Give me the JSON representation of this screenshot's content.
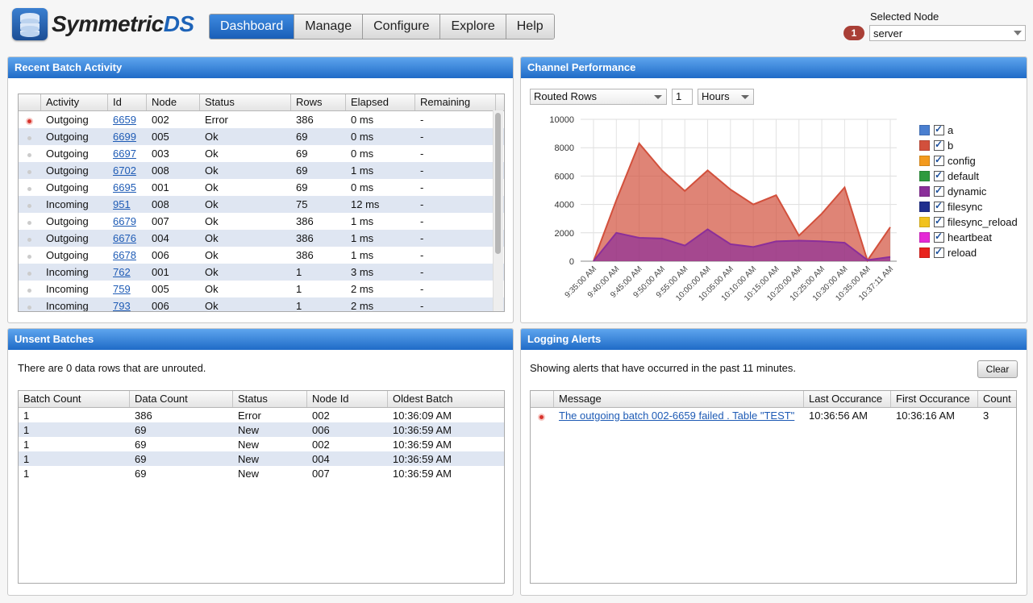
{
  "app": {
    "name_main": "Symmetric",
    "name_accent": "DS"
  },
  "nav": {
    "items": [
      "Dashboard",
      "Manage",
      "Configure",
      "Explore",
      "Help"
    ],
    "active": "Dashboard"
  },
  "node": {
    "label": "Selected Node",
    "badge": "1",
    "value": "server"
  },
  "recent": {
    "title": "Recent Batch Activity",
    "columns": [
      "Activity",
      "Id",
      "Node",
      "Status",
      "Rows",
      "Elapsed",
      "Remaining"
    ],
    "rows": [
      {
        "status_icon": "error",
        "activity": "Outgoing",
        "id": "6659",
        "node": "002",
        "status": "Error",
        "rows": "386",
        "elapsed": "0 ms",
        "remaining": "-"
      },
      {
        "status_icon": "ok",
        "activity": "Outgoing",
        "id": "6699",
        "node": "005",
        "status": "Ok",
        "rows": "69",
        "elapsed": "0 ms",
        "remaining": "-"
      },
      {
        "status_icon": "ok",
        "activity": "Outgoing",
        "id": "6697",
        "node": "003",
        "status": "Ok",
        "rows": "69",
        "elapsed": "0 ms",
        "remaining": "-"
      },
      {
        "status_icon": "ok",
        "activity": "Outgoing",
        "id": "6702",
        "node": "008",
        "status": "Ok",
        "rows": "69",
        "elapsed": "1 ms",
        "remaining": "-"
      },
      {
        "status_icon": "ok",
        "activity": "Outgoing",
        "id": "6695",
        "node": "001",
        "status": "Ok",
        "rows": "69",
        "elapsed": "0 ms",
        "remaining": "-"
      },
      {
        "status_icon": "ok",
        "activity": "Incoming",
        "id": "951",
        "node": "008",
        "status": "Ok",
        "rows": "75",
        "elapsed": "12 ms",
        "remaining": "-"
      },
      {
        "status_icon": "ok",
        "activity": "Outgoing",
        "id": "6679",
        "node": "007",
        "status": "Ok",
        "rows": "386",
        "elapsed": "1 ms",
        "remaining": "-"
      },
      {
        "status_icon": "ok",
        "activity": "Outgoing",
        "id": "6676",
        "node": "004",
        "status": "Ok",
        "rows": "386",
        "elapsed": "1 ms",
        "remaining": "-"
      },
      {
        "status_icon": "ok",
        "activity": "Outgoing",
        "id": "6678",
        "node": "006",
        "status": "Ok",
        "rows": "386",
        "elapsed": "1 ms",
        "remaining": "-"
      },
      {
        "status_icon": "ok",
        "activity": "Incoming",
        "id": "762",
        "node": "001",
        "status": "Ok",
        "rows": "1",
        "elapsed": "3 ms",
        "remaining": "-"
      },
      {
        "status_icon": "ok",
        "activity": "Incoming",
        "id": "759",
        "node": "005",
        "status": "Ok",
        "rows": "1",
        "elapsed": "2 ms",
        "remaining": "-"
      },
      {
        "status_icon": "ok",
        "activity": "Incoming",
        "id": "793",
        "node": "006",
        "status": "Ok",
        "rows": "1",
        "elapsed": "2 ms",
        "remaining": "-"
      }
    ]
  },
  "channel": {
    "title": "Channel Performance",
    "metric": "Routed Rows",
    "period_count": "1",
    "period_unit": "Hours"
  },
  "chart_data": {
    "type": "area",
    "x": [
      "9:35:00 AM",
      "9:40:00 AM",
      "9:45:00 AM",
      "9:50:00 AM",
      "9:55:00 AM",
      "10:00:00 AM",
      "10:05:00 AM",
      "10:10:00 AM",
      "10:15:00 AM",
      "10:20:00 AM",
      "10:25:00 AM",
      "10:30:00 AM",
      "10:35:00 AM",
      "10:37:11 AM"
    ],
    "ylim": [
      0,
      10000
    ],
    "yticks": [
      "10000",
      "8000",
      "6000",
      "4000",
      "2000",
      "0"
    ],
    "grid": true,
    "legend_position": "right",
    "series": [
      {
        "name": "a",
        "color": "#4a7fd0",
        "values": [
          0,
          0,
          0,
          0,
          0,
          0,
          0,
          0,
          0,
          0,
          0,
          0,
          0,
          0
        ]
      },
      {
        "name": "b",
        "color": "#d2503c",
        "values": [
          0,
          4300,
          8300,
          6400,
          4950,
          6400,
          5050,
          4000,
          4650,
          1800,
          3350,
          5200,
          50,
          2400
        ]
      },
      {
        "name": "config",
        "color": "#f39a1e",
        "values": [
          0,
          0,
          0,
          0,
          0,
          0,
          0,
          0,
          0,
          0,
          0,
          0,
          0,
          0
        ]
      },
      {
        "name": "default",
        "color": "#2e9a3f",
        "values": [
          0,
          0,
          0,
          0,
          0,
          0,
          0,
          0,
          0,
          0,
          0,
          0,
          0,
          0
        ]
      },
      {
        "name": "dynamic",
        "color": "#8b2f9a",
        "values": [
          0,
          2000,
          1650,
          1600,
          1100,
          2250,
          1200,
          1000,
          1400,
          1450,
          1400,
          1300,
          80,
          300
        ]
      },
      {
        "name": "filesync",
        "color": "#1f2f8e",
        "values": [
          0,
          0,
          0,
          0,
          0,
          0,
          0,
          0,
          0,
          0,
          0,
          0,
          0,
          0
        ]
      },
      {
        "name": "filesync_reload",
        "color": "#f1c21e",
        "values": [
          0,
          0,
          0,
          0,
          0,
          0,
          0,
          0,
          0,
          0,
          0,
          0,
          0,
          0
        ]
      },
      {
        "name": "heartbeat",
        "color": "#e52ad6",
        "values": [
          0,
          0,
          0,
          0,
          0,
          0,
          0,
          0,
          0,
          0,
          0,
          0,
          0,
          0
        ]
      },
      {
        "name": "reload",
        "color": "#e8231e",
        "values": [
          0,
          0,
          0,
          0,
          0,
          0,
          0,
          0,
          0,
          0,
          0,
          0,
          0,
          0
        ]
      }
    ]
  },
  "unsent": {
    "title": "Unsent Batches",
    "message": "There are 0 data rows that are unrouted.",
    "columns": [
      "Batch Count",
      "Data Count",
      "Status",
      "Node Id",
      "Oldest Batch"
    ],
    "rows": [
      {
        "batch_count": "1",
        "data_count": "386",
        "status": "Error",
        "node_id": "002",
        "oldest": "10:36:09 AM"
      },
      {
        "batch_count": "1",
        "data_count": "69",
        "status": "New",
        "node_id": "006",
        "oldest": "10:36:59 AM"
      },
      {
        "batch_count": "1",
        "data_count": "69",
        "status": "New",
        "node_id": "002",
        "oldest": "10:36:59 AM"
      },
      {
        "batch_count": "1",
        "data_count": "69",
        "status": "New",
        "node_id": "004",
        "oldest": "10:36:59 AM"
      },
      {
        "batch_count": "1",
        "data_count": "69",
        "status": "New",
        "node_id": "007",
        "oldest": "10:36:59 AM"
      }
    ]
  },
  "alerts": {
    "title": "Logging Alerts",
    "message": "Showing alerts that have occurred in the past 11 minutes.",
    "clear_label": "Clear",
    "columns": [
      "Message",
      "Last Occurance",
      "First Occurance",
      "Count"
    ],
    "rows": [
      {
        "level": "error",
        "message": "The outgoing batch 002-6659 failed . Table \"TEST\"",
        "last": "10:36:56 AM",
        "first": "10:36:16 AM",
        "count": "3"
      }
    ]
  }
}
